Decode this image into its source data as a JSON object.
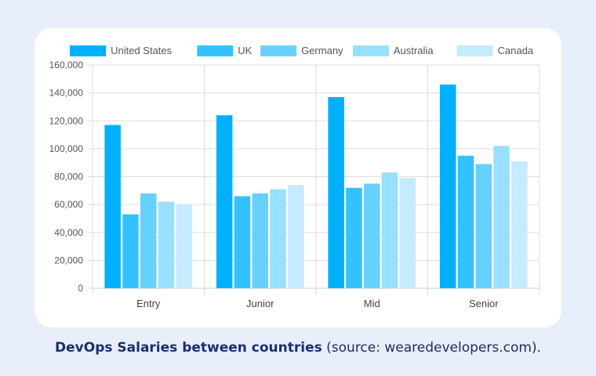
{
  "chart_data": {
    "type": "bar",
    "categories": [
      "Entry",
      "Junior",
      "Mid",
      "Senior"
    ],
    "series": [
      {
        "name": "United States",
        "color": "#00b0fb",
        "values": [
          117000,
          124000,
          137000,
          146000
        ]
      },
      {
        "name": "UK",
        "color": "#33c2fd",
        "values": [
          53000,
          66000,
          72000,
          95000
        ]
      },
      {
        "name": "Germany",
        "color": "#67d1fd",
        "values": [
          68000,
          68000,
          75000,
          89000
        ]
      },
      {
        "name": "Australia",
        "color": "#99dffe",
        "values": [
          62000,
          71000,
          83000,
          102000
        ]
      },
      {
        "name": "Canada",
        "color": "#c4ebfe",
        "values": [
          60000,
          74000,
          79000,
          91000
        ]
      }
    ],
    "ylim": [
      0,
      160000
    ],
    "yticks": [
      "0",
      "20,000",
      "40,000",
      "60,000",
      "80,000",
      "100,000",
      "120,000",
      "140,000",
      "160,000"
    ],
    "legend_position": "top",
    "grid": true
  },
  "caption": {
    "bold": "DevOps Salaries between countries",
    "rest": " (source: wearedevelopers.com)."
  }
}
